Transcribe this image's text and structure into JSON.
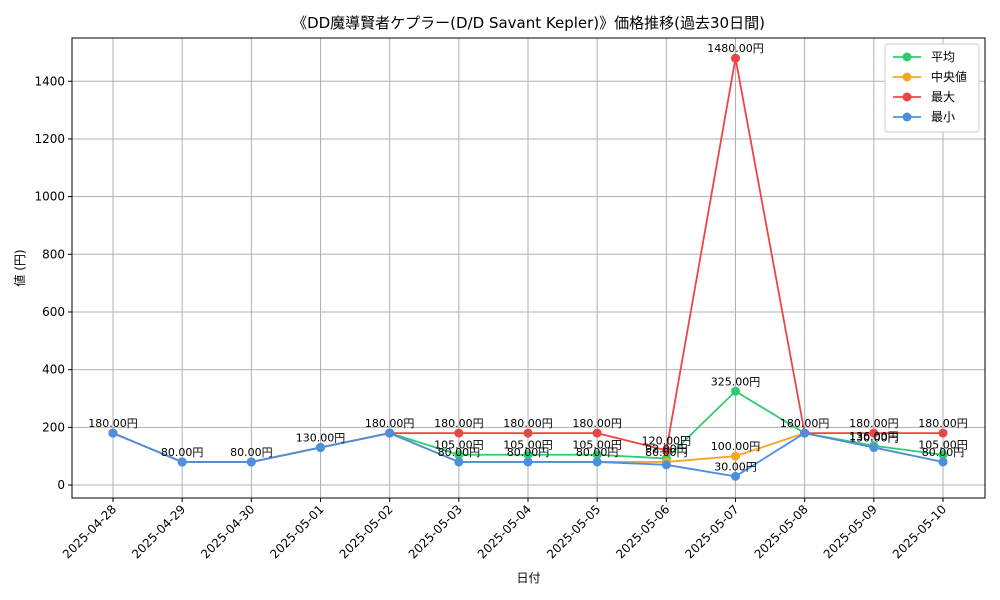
{
  "chart_data": {
    "type": "line",
    "title": "《DD魔導賢者ケプラー(D/D Savant Kepler)》価格推移(過去30日間)",
    "xlabel": "日付",
    "ylabel": "値 (円)",
    "ylim": [
      -45,
      1550
    ],
    "yticks": [
      0,
      200,
      400,
      600,
      800,
      1000,
      1200,
      1400
    ],
    "grid": true,
    "legend_position": "top-right",
    "categories": [
      "2025-04-28",
      "2025-04-29",
      "2025-04-30",
      "2025-05-01",
      "2025-05-02",
      "2025-05-03",
      "2025-05-04",
      "2025-05-05",
      "2025-05-06",
      "2025-05-07",
      "2025-05-08",
      "2025-05-09",
      "2025-05-10"
    ],
    "series": [
      {
        "name": "平均",
        "color": "#2ecc71",
        "values": [
          180,
          80,
          80,
          130,
          180,
          105,
          105,
          105,
          92,
          325,
          180,
          136,
          105
        ]
      },
      {
        "name": "中央値",
        "color": "#f5a623",
        "values": [
          180,
          80,
          80,
          130,
          180,
          80,
          80,
          80,
          80,
          100,
          180,
          130,
          80
        ]
      },
      {
        "name": "最大",
        "color": "#ef4444",
        "values": [
          180,
          80,
          80,
          130,
          180,
          180,
          180,
          180,
          120,
          1480,
          180,
          180,
          180
        ]
      },
      {
        "name": "最小",
        "color": "#4a90e2",
        "values": [
          180,
          80,
          80,
          130,
          180,
          80,
          80,
          80,
          70,
          30,
          180,
          130,
          80
        ]
      }
    ],
    "annotations": [
      {
        "x": "2025-04-28",
        "y": 180,
        "text": "180.00円"
      },
      {
        "x": "2025-04-29",
        "y": 80,
        "text": "80.00円"
      },
      {
        "x": "2025-04-30",
        "y": 80,
        "text": "80.00円"
      },
      {
        "x": "2025-05-01",
        "y": 130,
        "text": "130.00円"
      },
      {
        "x": "2025-05-02",
        "y": 180,
        "text": "180.00円"
      },
      {
        "x": "2025-05-03",
        "y": 180,
        "text": "180.00円"
      },
      {
        "x": "2025-05-03",
        "y": 105,
        "text": "105.00円"
      },
      {
        "x": "2025-05-03",
        "y": 80,
        "text": "80.00円"
      },
      {
        "x": "2025-05-04",
        "y": 180,
        "text": "180.00円"
      },
      {
        "x": "2025-05-04",
        "y": 105,
        "text": "105.00円"
      },
      {
        "x": "2025-05-04",
        "y": 80,
        "text": "80.00円"
      },
      {
        "x": "2025-05-05",
        "y": 180,
        "text": "180.00円"
      },
      {
        "x": "2025-05-05",
        "y": 105,
        "text": "105.00円"
      },
      {
        "x": "2025-05-05",
        "y": 80,
        "text": "80.00円"
      },
      {
        "x": "2025-05-06",
        "y": 120,
        "text": "120.00円"
      },
      {
        "x": "2025-05-06",
        "y": 92,
        "text": "92.00円"
      },
      {
        "x": "2025-05-06",
        "y": 80,
        "text": "80.00円"
      },
      {
        "x": "2025-05-07",
        "y": 1480,
        "text": "1480.00円"
      },
      {
        "x": "2025-05-07",
        "y": 325,
        "text": "325.00円"
      },
      {
        "x": "2025-05-07",
        "y": 100,
        "text": "100.00円"
      },
      {
        "x": "2025-05-07",
        "y": 30,
        "text": "30.00円"
      },
      {
        "x": "2025-05-08",
        "y": 180,
        "text": "180.00円"
      },
      {
        "x": "2025-05-09",
        "y": 180,
        "text": "180.00円"
      },
      {
        "x": "2025-05-09",
        "y": 136,
        "text": "136.00円"
      },
      {
        "x": "2025-05-09",
        "y": 130,
        "text": "130.00円"
      },
      {
        "x": "2025-05-10",
        "y": 180,
        "text": "180.00円"
      },
      {
        "x": "2025-05-10",
        "y": 105,
        "text": "105.00円"
      },
      {
        "x": "2025-05-10",
        "y": 80,
        "text": "80.00円"
      }
    ]
  }
}
